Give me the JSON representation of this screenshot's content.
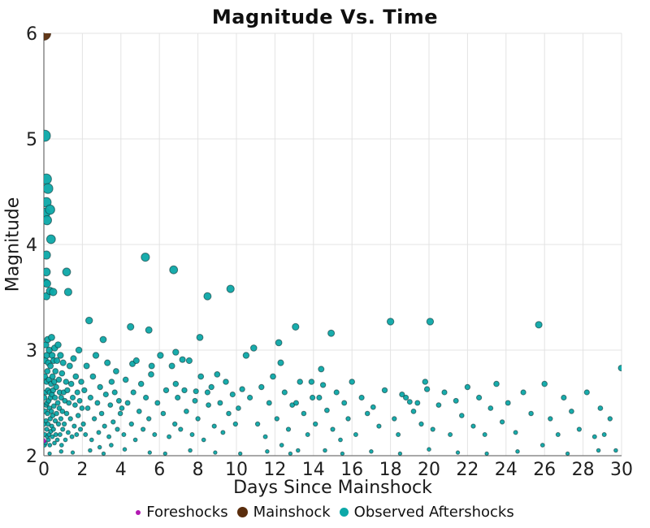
{
  "chart_data": {
    "type": "scatter",
    "title": "Magnitude Vs. Time",
    "xlabel": "Days Since Mainshock",
    "ylabel": "Magnitude",
    "xlim": [
      0,
      30
    ],
    "ylim": [
      2,
      6
    ],
    "xticks": [
      0,
      2,
      4,
      6,
      8,
      10,
      12,
      14,
      16,
      18,
      20,
      22,
      24,
      26,
      28,
      30
    ],
    "yticks": [
      2,
      3,
      4,
      5,
      6
    ],
    "grid": true,
    "legend_position": "bottom-center",
    "colors": {
      "grid": "#e3e3e3",
      "axis": "#757575",
      "tick_text": "#1f1f1f"
    },
    "series": [
      {
        "name": "Foreshocks",
        "color": "#b219b2",
        "stroke": "#6e0e6e",
        "radius": 2.6,
        "legend_size": 6,
        "points": [
          [
            0.0,
            2.14
          ]
        ]
      },
      {
        "name": "Mainshock",
        "color": "#5a2d0d",
        "stroke": "#2f1705",
        "radius": 8.5,
        "legend_size": 13,
        "points": [
          [
            0.0,
            6.0
          ]
        ]
      },
      {
        "name": "Observed Aftershocks",
        "color": "#0ca8a8",
        "stroke": "#0d3535",
        "legend_size": 11,
        "points": [
          [
            0.02,
            2.3
          ],
          [
            0.03,
            2.55
          ],
          [
            0.04,
            2.1
          ],
          [
            0.05,
            5.03
          ],
          [
            0.05,
            2.75
          ],
          [
            0.06,
            2.2
          ],
          [
            0.07,
            2.42
          ],
          [
            0.08,
            4.3
          ],
          [
            0.08,
            3.64
          ],
          [
            0.08,
            2.9
          ],
          [
            0.09,
            2.12
          ],
          [
            0.1,
            2.6
          ],
          [
            0.1,
            3.05
          ],
          [
            0.11,
            2.33
          ],
          [
            0.12,
            2.48
          ],
          [
            0.13,
            4.62
          ],
          [
            0.13,
            4.4
          ],
          [
            0.13,
            3.9
          ],
          [
            0.13,
            3.74
          ],
          [
            0.13,
            3.51
          ],
          [
            0.14,
            2.7
          ],
          [
            0.15,
            2.25
          ],
          [
            0.15,
            2.95
          ],
          [
            0.16,
            4.23
          ],
          [
            0.16,
            3.63
          ],
          [
            0.17,
            2.5
          ],
          [
            0.18,
            2.18
          ],
          [
            0.18,
            2.8
          ],
          [
            0.19,
            2.4
          ],
          [
            0.2,
            3.1
          ],
          [
            0.21,
            4.53
          ],
          [
            0.21,
            2.62
          ],
          [
            0.22,
            2.3
          ],
          [
            0.23,
            2.88
          ],
          [
            0.24,
            2.15
          ],
          [
            0.25,
            2.52
          ],
          [
            0.26,
            2.72
          ],
          [
            0.27,
            2.2
          ],
          [
            0.28,
            3.0
          ],
          [
            0.29,
            2.45
          ],
          [
            0.3,
            2.6
          ],
          [
            0.3,
            2.02
          ],
          [
            0.31,
            2.1
          ],
          [
            0.32,
            4.33
          ],
          [
            0.32,
            3.56
          ],
          [
            0.33,
            2.35
          ],
          [
            0.34,
            2.85
          ],
          [
            0.35,
            2.55
          ],
          [
            0.36,
            2.23
          ],
          [
            0.37,
            4.05
          ],
          [
            0.38,
            2.68
          ],
          [
            0.39,
            2.42
          ],
          [
            0.4,
            3.12
          ],
          [
            0.41,
            2.28
          ],
          [
            0.42,
            2.58
          ],
          [
            0.43,
            2.95
          ],
          [
            0.44,
            2.18
          ],
          [
            0.45,
            2.75
          ],
          [
            0.46,
            2.38
          ],
          [
            0.48,
            3.55
          ],
          [
            0.48,
            2.62
          ],
          [
            0.5,
            2.25
          ],
          [
            0.51,
            2.9
          ],
          [
            0.52,
            2.47
          ],
          [
            0.54,
            2.7
          ],
          [
            0.55,
            2.12
          ],
          [
            0.56,
            3.02
          ],
          [
            0.58,
            2.55
          ],
          [
            0.59,
            2.33
          ],
          [
            0.6,
            2.8
          ],
          [
            0.62,
            2.2
          ],
          [
            0.64,
            2.65
          ],
          [
            0.66,
            2.4
          ],
          [
            0.68,
            2.9
          ],
          [
            0.7,
            2.15
          ],
          [
            0.72,
            2.5
          ],
          [
            0.74,
            3.05
          ],
          [
            0.76,
            2.3
          ],
          [
            0.78,
            2.72
          ],
          [
            0.8,
            2.45
          ],
          [
            0.82,
            2.6
          ],
          [
            0.84,
            2.2
          ],
          [
            0.86,
            2.95
          ],
          [
            0.88,
            2.35
          ],
          [
            0.9,
            2.55
          ],
          [
            0.9,
            2.04
          ],
          [
            0.92,
            2.1
          ],
          [
            0.94,
            2.78
          ],
          [
            0.96,
            2.42
          ],
          [
            0.98,
            2.25
          ],
          [
            1.0,
            2.88
          ],
          [
            1.03,
            2.6
          ],
          [
            1.06,
            2.3
          ],
          [
            1.09,
            2.52
          ],
          [
            1.12,
            2.15
          ],
          [
            1.15,
            2.7
          ],
          [
            1.18,
            3.74
          ],
          [
            1.18,
            2.4
          ],
          [
            1.22,
            2.62
          ],
          [
            1.26,
            3.55
          ],
          [
            1.26,
            2.22
          ],
          [
            1.3,
            2.5
          ],
          [
            1.34,
            2.85
          ],
          [
            1.38,
            2.35
          ],
          [
            1.42,
            2.68
          ],
          [
            1.46,
            2.18
          ],
          [
            1.5,
            2.55
          ],
          [
            1.5,
            2.03
          ],
          [
            1.54,
            2.92
          ],
          [
            1.58,
            2.28
          ],
          [
            1.62,
            2.48
          ],
          [
            1.66,
            2.75
          ],
          [
            1.7,
            2.2
          ],
          [
            1.74,
            2.6
          ],
          [
            1.78,
            2.38
          ],
          [
            1.82,
            3.0
          ],
          [
            1.86,
            2.52
          ],
          [
            1.9,
            2.25
          ],
          [
            1.94,
            2.7
          ],
          [
            1.98,
            2.45
          ],
          [
            2.05,
            2.3
          ],
          [
            2.1,
            2.62
          ],
          [
            2.16,
            2.2
          ],
          [
            2.22,
            2.85
          ],
          [
            2.28,
            2.45
          ],
          [
            2.35,
            3.28
          ],
          [
            2.4,
            2.05
          ],
          [
            2.42,
            2.55
          ],
          [
            2.48,
            2.15
          ],
          [
            2.55,
            2.75
          ],
          [
            2.62,
            2.35
          ],
          [
            2.7,
            2.95
          ],
          [
            2.78,
            2.5
          ],
          [
            2.85,
            2.22
          ],
          [
            2.9,
            2.08
          ],
          [
            2.92,
            2.65
          ],
          [
            3.0,
            2.4
          ],
          [
            3.08,
            3.1
          ],
          [
            3.1,
            2.02
          ],
          [
            3.15,
            2.28
          ],
          [
            3.22,
            2.58
          ],
          [
            3.3,
            2.88
          ],
          [
            3.38,
            2.18
          ],
          [
            3.45,
            2.48
          ],
          [
            3.5,
            2.1
          ],
          [
            3.52,
            2.7
          ],
          [
            3.6,
            2.32
          ],
          [
            3.68,
            2.6
          ],
          [
            3.75,
            2.8
          ],
          [
            3.82,
            2.25
          ],
          [
            3.9,
            2.52
          ],
          [
            3.97,
            2.4
          ],
          [
            4.05,
            2.45
          ],
          [
            4.15,
            2.2
          ],
          [
            4.2,
            2.06
          ],
          [
            4.25,
            2.72
          ],
          [
            4.35,
            2.5
          ],
          [
            4.5,
            3.22
          ],
          [
            4.55,
            2.3
          ],
          [
            4.6,
            2.87
          ],
          [
            4.65,
            2.6
          ],
          [
            4.75,
            2.15
          ],
          [
            4.8,
            2.9
          ],
          [
            4.95,
            2.42
          ],
          [
            5.05,
            2.68
          ],
          [
            5.15,
            2.25
          ],
          [
            5.27,
            3.88
          ],
          [
            5.3,
            2.55
          ],
          [
            5.45,
            3.19
          ],
          [
            5.45,
            2.35
          ],
          [
            5.5,
            2.03
          ],
          [
            5.57,
            2.77
          ],
          [
            5.6,
            2.85
          ],
          [
            5.75,
            2.2
          ],
          [
            5.9,
            2.5
          ],
          [
            6.05,
            2.95
          ],
          [
            6.2,
            2.4
          ],
          [
            6.3,
            2.02
          ],
          [
            6.35,
            2.62
          ],
          [
            6.5,
            2.18
          ],
          [
            6.65,
            2.85
          ],
          [
            6.74,
            3.76
          ],
          [
            6.8,
            2.3
          ],
          [
            6.85,
            2.98
          ],
          [
            6.85,
            2.68
          ],
          [
            6.95,
            2.55
          ],
          [
            7.1,
            2.25
          ],
          [
            7.2,
            2.91
          ],
          [
            7.3,
            2.62
          ],
          [
            7.4,
            2.42
          ],
          [
            7.55,
            2.9
          ],
          [
            7.6,
            2.05
          ],
          [
            7.7,
            2.2
          ],
          [
            7.85,
            2.52
          ],
          [
            7.9,
            2.61
          ],
          [
            8.0,
            2.35
          ],
          [
            8.1,
            3.12
          ],
          [
            8.15,
            2.75
          ],
          [
            8.3,
            2.15
          ],
          [
            8.5,
            3.51
          ],
          [
            8.5,
            2.6
          ],
          [
            8.55,
            2.48
          ],
          [
            8.7,
            2.65
          ],
          [
            8.85,
            2.28
          ],
          [
            8.9,
            2.03
          ],
          [
            9.0,
            2.77
          ],
          [
            9.15,
            2.5
          ],
          [
            9.3,
            2.22
          ],
          [
            9.45,
            2.7
          ],
          [
            9.6,
            2.4
          ],
          [
            9.69,
            3.58
          ],
          [
            9.8,
            2.58
          ],
          [
            9.95,
            2.3
          ],
          [
            10.1,
            2.45
          ],
          [
            10.2,
            2.02
          ],
          [
            10.3,
            2.63
          ],
          [
            10.5,
            2.95
          ],
          [
            10.7,
            2.55
          ],
          [
            10.9,
            3.02
          ],
          [
            11.1,
            2.3
          ],
          [
            11.3,
            2.65
          ],
          [
            11.5,
            2.18
          ],
          [
            11.6,
            2.04
          ],
          [
            11.7,
            2.5
          ],
          [
            11.9,
            2.75
          ],
          [
            12.1,
            2.35
          ],
          [
            12.2,
            3.07
          ],
          [
            12.3,
            2.88
          ],
          [
            12.35,
            2.1
          ],
          [
            12.5,
            2.6
          ],
          [
            12.7,
            2.25
          ],
          [
            12.8,
            2.02
          ],
          [
            12.9,
            2.48
          ],
          [
            13.07,
            3.22
          ],
          [
            13.1,
            2.5
          ],
          [
            13.2,
            2.05
          ],
          [
            13.3,
            2.7
          ],
          [
            13.5,
            2.4
          ],
          [
            13.7,
            2.2
          ],
          [
            13.9,
            2.7
          ],
          [
            13.95,
            2.55
          ],
          [
            14.1,
            2.3
          ],
          [
            14.3,
            2.55
          ],
          [
            14.4,
            2.82
          ],
          [
            14.5,
            2.67
          ],
          [
            14.6,
            2.05
          ],
          [
            14.7,
            2.43
          ],
          [
            14.92,
            3.16
          ],
          [
            15.0,
            2.25
          ],
          [
            15.2,
            2.6
          ],
          [
            15.4,
            2.15
          ],
          [
            15.5,
            2.02
          ],
          [
            15.6,
            2.5
          ],
          [
            15.8,
            2.35
          ],
          [
            16.0,
            2.7
          ],
          [
            16.2,
            2.2
          ],
          [
            16.5,
            2.55
          ],
          [
            16.8,
            2.4
          ],
          [
            17.0,
            2.04
          ],
          [
            17.1,
            2.46
          ],
          [
            17.4,
            2.28
          ],
          [
            17.7,
            2.62
          ],
          [
            18.0,
            3.27
          ],
          [
            18.2,
            2.35
          ],
          [
            18.4,
            2.2
          ],
          [
            18.5,
            2.02
          ],
          [
            18.6,
            2.58
          ],
          [
            18.8,
            2.55
          ],
          [
            19.0,
            2.51
          ],
          [
            19.2,
            2.42
          ],
          [
            19.4,
            2.5
          ],
          [
            19.6,
            2.3
          ],
          [
            19.8,
            2.7
          ],
          [
            19.9,
            2.63
          ],
          [
            20.0,
            2.06
          ],
          [
            20.06,
            3.27
          ],
          [
            20.2,
            2.25
          ],
          [
            20.5,
            2.48
          ],
          [
            20.8,
            2.6
          ],
          [
            21.1,
            2.2
          ],
          [
            21.4,
            2.52
          ],
          [
            21.5,
            2.03
          ],
          [
            21.7,
            2.38
          ],
          [
            22.0,
            2.65
          ],
          [
            22.3,
            2.28
          ],
          [
            22.6,
            2.55
          ],
          [
            22.9,
            2.2
          ],
          [
            23.0,
            2.02
          ],
          [
            23.2,
            2.45
          ],
          [
            23.5,
            2.68
          ],
          [
            23.8,
            2.32
          ],
          [
            24.1,
            2.5
          ],
          [
            24.5,
            2.22
          ],
          [
            24.6,
            2.04
          ],
          [
            24.9,
            2.6
          ],
          [
            25.3,
            2.4
          ],
          [
            25.7,
            3.24
          ],
          [
            25.9,
            2.1
          ],
          [
            26.0,
            2.68
          ],
          [
            26.3,
            2.35
          ],
          [
            26.7,
            2.2
          ],
          [
            27.0,
            2.55
          ],
          [
            27.2,
            2.02
          ],
          [
            27.4,
            2.42
          ],
          [
            27.8,
            2.25
          ],
          [
            28.2,
            2.6
          ],
          [
            28.6,
            2.18
          ],
          [
            28.8,
            2.05
          ],
          [
            28.9,
            2.45
          ],
          [
            29.1,
            2.2
          ],
          [
            29.4,
            2.35
          ],
          [
            29.7,
            2.05
          ],
          [
            29.98,
            2.83
          ]
        ]
      }
    ]
  }
}
